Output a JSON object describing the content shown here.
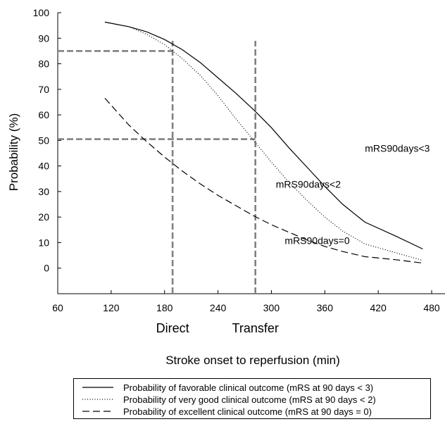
{
  "chart_data": {
    "type": "line",
    "xlabel": "Stroke onset to reperfusion (min)",
    "ylabel": "Probability (%)",
    "xlim": [
      60,
      495
    ],
    "ylim": [
      -10,
      100
    ],
    "xticks": [
      60,
      120,
      180,
      240,
      300,
      360,
      420,
      480
    ],
    "yticks": [
      0,
      10,
      20,
      30,
      40,
      50,
      60,
      70,
      80,
      90,
      100
    ],
    "grid": false,
    "legend_placement": "bottom",
    "series": [
      {
        "name": "Probability of favorable clinical outcome (mRS at 90 days < 3)",
        "style": "solid",
        "color": "#000000",
        "x": [
          113,
          140,
          160,
          180,
          200,
          220,
          240,
          260,
          280,
          300,
          320,
          340,
          360,
          380,
          405,
          440,
          470
        ],
        "y": [
          96.3,
          94.5,
          92.5,
          89.5,
          85.5,
          80.5,
          74.5,
          68.5,
          62,
          55,
          47,
          39.5,
          32,
          25,
          18,
          12.5,
          7.5
        ]
      },
      {
        "name": "Probability of very good clinical outcome (mRS at 90 days < 2)",
        "style": "dotted",
        "color": "#000000",
        "x": [
          113,
          140,
          160,
          180,
          200,
          220,
          240,
          260,
          280,
          300,
          320,
          340,
          360,
          380,
          405,
          440,
          470
        ],
        "y": [
          96.3,
          94.5,
          91.5,
          87.5,
          82,
          75.5,
          67.5,
          58.5,
          50,
          41.5,
          33.5,
          26.5,
          20,
          14.5,
          9.5,
          6,
          3
        ]
      },
      {
        "name": "Probability of excellent clinical outcome (mRS at 90 days = 0)",
        "style": "dashed",
        "color": "#000000",
        "x": [
          113,
          140,
          160,
          180,
          200,
          220,
          240,
          260,
          280,
          300,
          320,
          340,
          360,
          380,
          405,
          440,
          470
        ],
        "y": [
          66.5,
          56,
          49.5,
          43.5,
          38,
          33,
          28.5,
          24.5,
          20.5,
          17,
          14,
          11,
          8.5,
          6.5,
          4.5,
          3.3,
          2
        ]
      }
    ],
    "reference_lines": [
      {
        "label": "Direct",
        "x": 189,
        "y": 85,
        "color": "#808080"
      },
      {
        "label": "Transfer",
        "x": 282,
        "y": 50.5,
        "color": "#808080"
      }
    ],
    "annotations": [
      {
        "text": "mRS90days<3",
        "x": 405,
        "y": 45.5
      },
      {
        "text": "mRS90days<2",
        "x": 305,
        "y": 31.5
      },
      {
        "text": "mRS90days=0",
        "x": 315,
        "y": 9.5
      }
    ]
  }
}
